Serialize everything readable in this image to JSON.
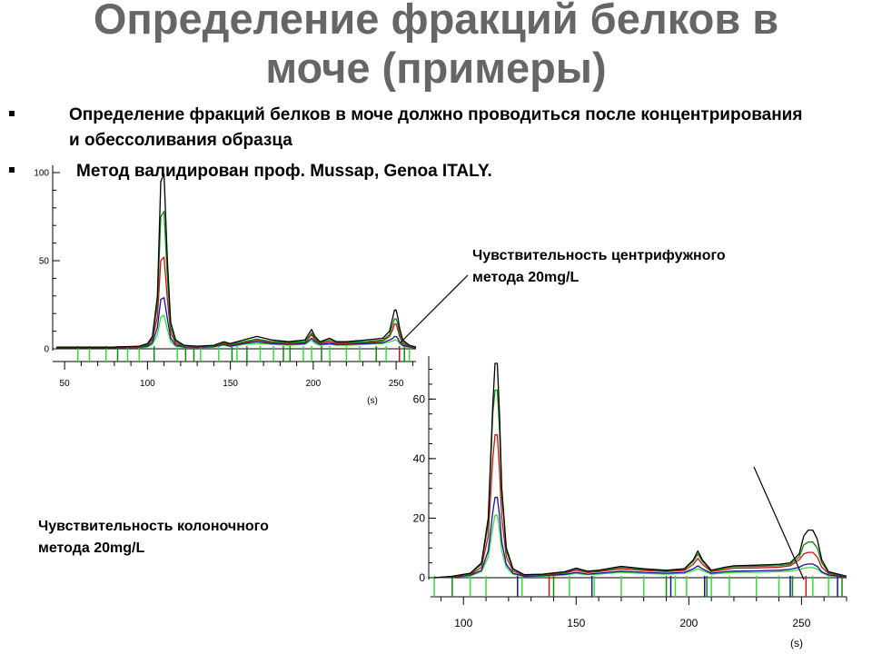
{
  "slide": {
    "title": "Определение фракций белков в\nмоче (примеры)",
    "bullets": [
      "Определение фракций белков в моче должно проводиться после концентрирования и обессоливания образца",
      "Метод валидирован проф. Mussap, Genoa ITALY."
    ],
    "caption_centrifuge": "Чувствительность центрифужного\nметода 20mg/L",
    "caption_column": "Чувствительность колоночного\nметода 20mg/L"
  },
  "colors": {
    "title": "#666666",
    "black": "#000000",
    "green": "#0a8a0a",
    "red": "#cc1111",
    "blue": "#1111aa",
    "lightgreen": "#33dd33",
    "grey": "#555555"
  },
  "chart_data": [
    {
      "type": "line",
      "title": "",
      "xlabel": "(s)",
      "ylabel": "",
      "xlim": [
        45,
        262
      ],
      "ylim": [
        0,
        100
      ],
      "x_ticks": [
        50,
        100,
        150,
        200,
        250
      ],
      "y_ticks": [
        0,
        50,
        100
      ],
      "series": [
        {
          "color": "black",
          "x": [
            45,
            80,
            95,
            100,
            103,
            106,
            108,
            110,
            112,
            114,
            117,
            122,
            130,
            140,
            146,
            150,
            158,
            166,
            175,
            185,
            195,
            199,
            201,
            204,
            210,
            214,
            220,
            232,
            242,
            246,
            248,
            249,
            250,
            251,
            252,
            254,
            258,
            262
          ],
          "y": [
            1,
            1,
            1.5,
            3,
            7,
            30,
            95,
            99,
            50,
            15,
            5,
            2,
            1.5,
            2,
            4,
            3,
            5,
            7,
            5,
            4,
            5,
            11,
            7,
            4,
            6,
            4,
            4,
            5,
            6,
            10,
            18,
            22,
            22,
            18,
            12,
            5,
            2,
            1
          ]
        },
        {
          "color": "green",
          "x": [
            45,
            80,
            95,
            100,
            103,
            106,
            108,
            110,
            112,
            114,
            117,
            122,
            130,
            140,
            146,
            150,
            158,
            166,
            175,
            185,
            195,
            199,
            201,
            204,
            210,
            214,
            220,
            232,
            242,
            246,
            248,
            249,
            250,
            251,
            252,
            254,
            258,
            262
          ],
          "y": [
            1,
            1,
            1.3,
            2.5,
            6,
            25,
            75,
            78,
            40,
            12,
            4,
            1.5,
            1.2,
            1.8,
            3.5,
            2.5,
            4,
            5.5,
            4,
            3.5,
            4,
            9,
            6,
            3.5,
            5,
            3.5,
            3.5,
            4,
            5,
            8,
            14,
            17,
            17,
            14,
            9,
            4,
            1.5,
            1
          ]
        },
        {
          "color": "red",
          "x": [
            45,
            80,
            95,
            100,
            103,
            106,
            108,
            110,
            112,
            114,
            117,
            122,
            130,
            140,
            146,
            150,
            158,
            166,
            175,
            185,
            195,
            199,
            201,
            204,
            210,
            214,
            220,
            232,
            242,
            246,
            248,
            249,
            250,
            251,
            252,
            254,
            258,
            262
          ],
          "y": [
            0.8,
            0.8,
            1,
            2,
            5,
            18,
            50,
            52,
            28,
            9,
            3,
            1.2,
            1,
            1.5,
            3,
            2,
            3.5,
            5,
            3.5,
            3,
            3.5,
            8,
            5,
            3,
            4,
            3,
            3,
            3.5,
            4.5,
            7,
            11,
            14,
            14,
            11,
            7,
            3,
            1.2,
            0.8
          ]
        },
        {
          "color": "blue",
          "x": [
            45,
            80,
            95,
            100,
            103,
            106,
            108,
            110,
            112,
            114,
            117,
            122,
            130,
            140,
            146,
            150,
            158,
            166,
            175,
            185,
            195,
            199,
            201,
            204,
            210,
            214,
            220,
            232,
            242,
            246,
            248,
            249,
            250,
            251,
            252,
            254,
            258,
            262
          ],
          "y": [
            0.6,
            0.6,
            0.8,
            1.5,
            3.5,
            12,
            28,
            29,
            17,
            6,
            2,
            1,
            0.8,
            1.2,
            2.5,
            1.5,
            3,
            4,
            3,
            2.5,
            3,
            6,
            4,
            2.5,
            3,
            2.5,
            2.5,
            3,
            3.5,
            5,
            6,
            7,
            7,
            6,
            4,
            2,
            1,
            0.6
          ]
        },
        {
          "color": "lightgreen",
          "x": [
            45,
            80,
            95,
            100,
            103,
            106,
            108,
            110,
            112,
            114,
            117,
            122,
            130,
            140,
            146,
            150,
            158,
            166,
            175,
            185,
            195,
            199,
            201,
            204,
            210,
            214,
            220,
            232,
            242,
            246,
            248,
            249,
            250,
            251,
            252,
            254,
            258,
            262
          ],
          "y": [
            0.5,
            0.5,
            0.6,
            1,
            2.5,
            8,
            18,
            19,
            11,
            4,
            1.5,
            0.8,
            0.6,
            1,
            2,
            1.2,
            2.5,
            3,
            2.5,
            2,
            2.5,
            5,
            3,
            2,
            2.5,
            2,
            2,
            2.5,
            3,
            4,
            4.5,
            5,
            5,
            4.5,
            3,
            1.5,
            0.8,
            0.5
          ]
        }
      ],
      "markers": [
        {
          "x": 58,
          "color": "lightgreen"
        },
        {
          "x": 65,
          "color": "lightgreen"
        },
        {
          "x": 75,
          "color": "lightgreen"
        },
        {
          "x": 82,
          "color": "green"
        },
        {
          "x": 88,
          "color": "lightgreen"
        },
        {
          "x": 95,
          "color": "lightgreen"
        },
        {
          "x": 104,
          "color": "green"
        },
        {
          "x": 118,
          "color": "lightgreen"
        },
        {
          "x": 123,
          "color": "green"
        },
        {
          "x": 128,
          "color": "green"
        },
        {
          "x": 132,
          "color": "lightgreen"
        },
        {
          "x": 143,
          "color": "lightgreen"
        },
        {
          "x": 151,
          "color": "green"
        },
        {
          "x": 154,
          "color": "lightgreen"
        },
        {
          "x": 160,
          "color": "green"
        },
        {
          "x": 168,
          "color": "lightgreen"
        },
        {
          "x": 176,
          "color": "lightgreen"
        },
        {
          "x": 182,
          "color": "green"
        },
        {
          "x": 186,
          "color": "green"
        },
        {
          "x": 194,
          "color": "lightgreen"
        },
        {
          "x": 199,
          "color": "lightgreen"
        },
        {
          "x": 205,
          "color": "green"
        },
        {
          "x": 210,
          "color": "lightgreen"
        },
        {
          "x": 220,
          "color": "lightgreen"
        },
        {
          "x": 228,
          "color": "lightgreen"
        },
        {
          "x": 238,
          "color": "green"
        },
        {
          "x": 244,
          "color": "lightgreen"
        },
        {
          "x": 252,
          "color": "red"
        },
        {
          "x": 255,
          "color": "green"
        },
        {
          "x": 258,
          "color": "lightgreen"
        }
      ]
    },
    {
      "type": "line",
      "title": "",
      "xlabel": "(s)",
      "ylabel": "",
      "xlim": [
        87,
        270
      ],
      "ylim": [
        0,
        72
      ],
      "x_ticks": [
        100,
        150,
        200,
        250
      ],
      "y_ticks": [
        0,
        20,
        40,
        60
      ],
      "series": [
        {
          "color": "black",
          "x": [
            87,
            95,
            103,
            108,
            111,
            113,
            114,
            115,
            116,
            117,
            119,
            122,
            127,
            135,
            145,
            150,
            155,
            160,
            170,
            180,
            190,
            198,
            202,
            204,
            206,
            210,
            216,
            220,
            230,
            240,
            245,
            249,
            251,
            253,
            255,
            257,
            259,
            262,
            270
          ],
          "y": [
            0,
            0.5,
            1.5,
            5,
            20,
            58,
            72,
            72,
            55,
            30,
            10,
            3,
            1,
            1.2,
            2,
            3.2,
            2.2,
            2.5,
            3.8,
            3,
            2.5,
            3,
            6,
            9,
            6,
            2.5,
            3.5,
            4,
            4.2,
            4.5,
            5,
            8,
            14,
            16,
            16,
            13,
            6,
            2,
            0.5
          ]
        },
        {
          "color": "green",
          "x": [
            87,
            95,
            103,
            108,
            111,
            113,
            114,
            115,
            116,
            117,
            119,
            122,
            127,
            135,
            145,
            150,
            155,
            160,
            170,
            180,
            190,
            198,
            202,
            204,
            206,
            210,
            216,
            220,
            230,
            240,
            245,
            249,
            251,
            253,
            255,
            257,
            259,
            262,
            270
          ],
          "y": [
            0,
            0.4,
            1.3,
            4.5,
            18,
            55,
            63,
            63,
            50,
            28,
            9,
            2.8,
            0.9,
            1.1,
            1.8,
            3,
            2,
            2.3,
            3.5,
            2.8,
            2.3,
            2.8,
            5.5,
            8,
            5.5,
            2.3,
            3.2,
            3.7,
            3.8,
            4,
            4.5,
            7,
            11,
            12,
            12,
            10,
            5,
            1.8,
            0.4
          ]
        },
        {
          "color": "red",
          "x": [
            87,
            95,
            103,
            108,
            111,
            113,
            114,
            115,
            116,
            117,
            119,
            122,
            127,
            135,
            145,
            150,
            155,
            160,
            170,
            180,
            190,
            198,
            202,
            204,
            206,
            210,
            216,
            220,
            230,
            240,
            245,
            249,
            251,
            253,
            255,
            257,
            259,
            262,
            270
          ],
          "y": [
            0,
            0.3,
            1,
            3.5,
            14,
            40,
            48,
            48,
            36,
            20,
            7,
            2.2,
            0.7,
            0.9,
            1.5,
            2.5,
            1.7,
            2,
            3,
            2.4,
            2,
            2.4,
            4.5,
            6.5,
            4.5,
            2,
            2.7,
            3.2,
            3.3,
            3.5,
            4,
            6,
            8,
            8.5,
            8.5,
            7,
            3.5,
            1.4,
            0.3
          ]
        },
        {
          "color": "blue",
          "x": [
            87,
            95,
            103,
            108,
            111,
            113,
            114,
            115,
            116,
            117,
            119,
            122,
            127,
            135,
            145,
            150,
            155,
            160,
            170,
            180,
            190,
            198,
            202,
            204,
            206,
            210,
            216,
            220,
            230,
            240,
            245,
            249,
            251,
            253,
            255,
            257,
            259,
            262,
            270
          ],
          "y": [
            0,
            0.2,
            0.8,
            2.5,
            9,
            22,
            27,
            27,
            21,
            12,
            4.5,
            1.5,
            0.5,
            0.7,
            1.1,
            1.8,
            1.2,
            1.5,
            2.2,
            1.8,
            1.5,
            1.8,
            3,
            4,
            3,
            1.5,
            2,
            2.2,
            2.3,
            2.5,
            2.8,
            3.5,
            4.3,
            4.6,
            4.6,
            3.8,
            2,
            0.9,
            0.2
          ]
        },
        {
          "color": "lightgreen",
          "x": [
            87,
            95,
            103,
            108,
            111,
            113,
            114,
            115,
            116,
            117,
            119,
            122,
            127,
            135,
            145,
            150,
            155,
            160,
            170,
            180,
            190,
            198,
            202,
            204,
            206,
            210,
            216,
            220,
            230,
            240,
            245,
            249,
            251,
            253,
            255,
            257,
            259,
            262,
            270
          ],
          "y": [
            0,
            0.2,
            0.6,
            2,
            7,
            17,
            21,
            21,
            16,
            9,
            3.5,
            1.2,
            0.4,
            0.5,
            0.9,
            1.4,
            1,
            1.2,
            1.8,
            1.4,
            1.2,
            1.4,
            2.4,
            3,
            2.4,
            1.2,
            1.6,
            1.8,
            1.8,
            2,
            2.2,
            2.7,
            3.2,
            3.4,
            3.4,
            2.9,
            1.6,
            0.7,
            0.2
          ]
        }
      ],
      "markers": [
        {
          "x": 87,
          "color": "lightgreen"
        },
        {
          "x": 95,
          "color": "green"
        },
        {
          "x": 103,
          "color": "lightgreen"
        },
        {
          "x": 110,
          "color": "lightgreen"
        },
        {
          "x": 124,
          "color": "blue"
        },
        {
          "x": 126,
          "color": "lightgreen"
        },
        {
          "x": 138,
          "color": "red"
        },
        {
          "x": 140,
          "color": "green"
        },
        {
          "x": 147,
          "color": "lightgreen"
        },
        {
          "x": 157,
          "color": "blue"
        },
        {
          "x": 158,
          "color": "lightgreen"
        },
        {
          "x": 170,
          "color": "lightgreen"
        },
        {
          "x": 180,
          "color": "lightgreen"
        },
        {
          "x": 190,
          "color": "green"
        },
        {
          "x": 192,
          "color": "blue"
        },
        {
          "x": 194,
          "color": "lightgreen"
        },
        {
          "x": 199,
          "color": "lightgreen"
        },
        {
          "x": 207,
          "color": "blue"
        },
        {
          "x": 208,
          "color": "green"
        },
        {
          "x": 210,
          "color": "lightgreen"
        },
        {
          "x": 218,
          "color": "lightgreen"
        },
        {
          "x": 230,
          "color": "lightgreen"
        },
        {
          "x": 240,
          "color": "lightgreen"
        },
        {
          "x": 245,
          "color": "blue"
        },
        {
          "x": 246,
          "color": "green"
        },
        {
          "x": 252,
          "color": "red"
        },
        {
          "x": 255,
          "color": "lightgreen"
        },
        {
          "x": 262,
          "color": "lightgreen"
        },
        {
          "x": 266,
          "color": "blue"
        },
        {
          "x": 268,
          "color": "green"
        }
      ]
    }
  ]
}
